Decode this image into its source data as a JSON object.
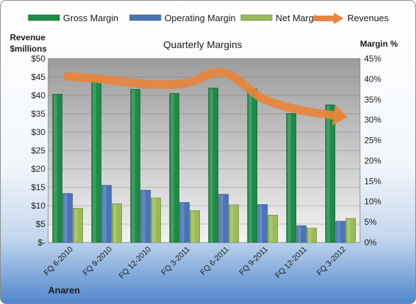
{
  "chart_data": {
    "type": "bar",
    "title": "Quarterly Margins",
    "y_left_label_line1": "Revenue",
    "y_left_label_line2": "$millions",
    "y_right_label": "Margin %",
    "footer_label": "Anaren",
    "categories": [
      "FQ 6-2010",
      "FQ 9-2010",
      "FQ 12-2010",
      "FQ 3-2011",
      "FQ 6-2011",
      "FQ 9-2011",
      "FQ 12-2011",
      "FQ 3-2012"
    ],
    "left_axis": {
      "min": 0,
      "max": 50,
      "step": 5,
      "tick_labels": [
        "$-",
        "$5",
        "$10",
        "$15",
        "$20",
        "$25",
        "$30",
        "$35",
        "$40",
        "$45",
        "$50"
      ]
    },
    "right_axis": {
      "min": 0,
      "max": 45,
      "step": 5,
      "tick_labels": [
        "0%",
        "5%",
        "10%",
        "15%",
        "20%",
        "25%",
        "30%",
        "35%",
        "40%",
        "45%"
      ]
    },
    "series": [
      {
        "name": "Gross Margin",
        "kind": "bar",
        "axis": "right",
        "color": "#1f8a47",
        "values": [
          36.3,
          39.5,
          37.5,
          36.5,
          37.8,
          37.6,
          31.6,
          33.7
        ]
      },
      {
        "name": "Operating Margin",
        "kind": "bar",
        "axis": "right",
        "color": "#4a74b4",
        "values": [
          12.0,
          14.0,
          12.8,
          9.8,
          11.8,
          9.3,
          4.1,
          5.2
        ]
      },
      {
        "name": "Net Margin",
        "kind": "bar",
        "axis": "right",
        "color": "#9bbb59",
        "values": [
          8.4,
          9.5,
          10.9,
          7.8,
          9.2,
          6.7,
          3.5,
          5.9
        ]
      },
      {
        "name": "Revenues",
        "kind": "line",
        "axis": "left",
        "color": "#e8843c",
        "values": [
          45.2,
          44.3,
          43.1,
          43.3,
          46.2,
          39.2,
          35.9,
          34.4
        ]
      }
    ],
    "grid": true,
    "legend_position": "top"
  }
}
